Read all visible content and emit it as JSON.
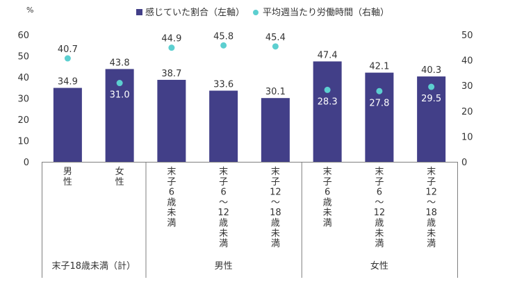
{
  "chart_data": {
    "type": "bar",
    "categories": [
      "男性",
      "女性",
      "末子6歳未満",
      "末子6～12歳未満",
      "末子12～18歳未満",
      "末子6歳未満",
      "末子6～12歳未満",
      "末子12～18歳未満"
    ],
    "category_label_lines": [
      [
        "男",
        "性"
      ],
      [
        "女",
        "性"
      ],
      [
        "末",
        "子",
        "6",
        "歳",
        "未",
        "満"
      ],
      [
        "末",
        "子",
        "6",
        "～",
        "12",
        "歳",
        "未",
        "満"
      ],
      [
        "末",
        "子",
        "12",
        "～",
        "18",
        "歳",
        "未",
        "満"
      ],
      [
        "末",
        "子",
        "6",
        "歳",
        "未",
        "満"
      ],
      [
        "末",
        "子",
        "6",
        "～",
        "12",
        "歳",
        "未",
        "満"
      ],
      [
        "末",
        "子",
        "12",
        "～",
        "18",
        "歳",
        "未",
        "満"
      ]
    ],
    "groups": [
      {
        "label": "末子18歳未満（計）",
        "span": [
          0,
          1
        ]
      },
      {
        "label": "男性",
        "span": [
          2,
          4
        ]
      },
      {
        "label": "女性",
        "span": [
          5,
          7
        ]
      }
    ],
    "series": [
      {
        "name": "感じていた割合（左軸）",
        "kind": "bar",
        "axis": "left",
        "values": [
          34.9,
          43.8,
          38.7,
          33.6,
          30.1,
          47.4,
          42.1,
          40.3
        ],
        "value_labels": [
          "34.9",
          "43.8",
          "38.7",
          "33.6",
          "30.1",
          "47.4",
          "42.1",
          "40.3"
        ]
      },
      {
        "name": "平均週当たり労働時間（右軸）",
        "kind": "scatter",
        "axis": "right",
        "values": [
          40.7,
          31.0,
          44.9,
          45.8,
          45.4,
          28.3,
          27.8,
          29.5
        ],
        "value_labels": [
          "40.7",
          "31.0",
          "44.9",
          "45.8",
          "45.4",
          "28.3",
          "27.8",
          "29.5"
        ]
      }
    ],
    "yunit": "%",
    "ylim": [
      0,
      60
    ],
    "yticks": [
      "0",
      "10",
      "20",
      "30",
      "40",
      "50",
      "60"
    ],
    "y2lim": [
      0,
      50
    ],
    "y2ticks": [
      "0",
      "10",
      "20",
      "30",
      "40",
      "50"
    ],
    "legend_position": "top",
    "grid": false,
    "colors": {
      "bar": "#423f88",
      "dot": "#5ccfd0",
      "axis": "#7f7f7f",
      "text": "#333333",
      "inside_label": "#ffffff"
    }
  }
}
